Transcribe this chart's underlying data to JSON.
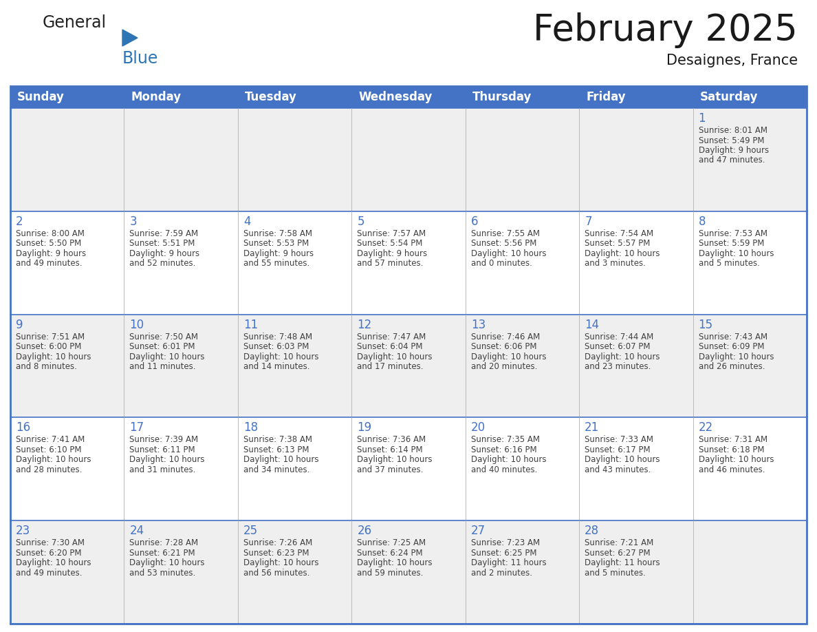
{
  "title": "February 2025",
  "subtitle": "Desaignes, France",
  "header_bg": "#4472C4",
  "header_text_color": "#FFFFFF",
  "cell_bg_odd": "#EFEFEF",
  "cell_bg_even": "#FFFFFF",
  "cell_border_color": "#4472C4",
  "day_number_color": "#4472C4",
  "cell_text_color": "#404040",
  "days_of_week": [
    "Sunday",
    "Monday",
    "Tuesday",
    "Wednesday",
    "Thursday",
    "Friday",
    "Saturday"
  ],
  "calendar": [
    [
      null,
      null,
      null,
      null,
      null,
      null,
      {
        "day": 1,
        "sunrise": "8:01 AM",
        "sunset": "5:49 PM",
        "daylight_line1": "Daylight: 9 hours",
        "daylight_line2": "and 47 minutes."
      }
    ],
    [
      {
        "day": 2,
        "sunrise": "8:00 AM",
        "sunset": "5:50 PM",
        "daylight_line1": "Daylight: 9 hours",
        "daylight_line2": "and 49 minutes."
      },
      {
        "day": 3,
        "sunrise": "7:59 AM",
        "sunset": "5:51 PM",
        "daylight_line1": "Daylight: 9 hours",
        "daylight_line2": "and 52 minutes."
      },
      {
        "day": 4,
        "sunrise": "7:58 AM",
        "sunset": "5:53 PM",
        "daylight_line1": "Daylight: 9 hours",
        "daylight_line2": "and 55 minutes."
      },
      {
        "day": 5,
        "sunrise": "7:57 AM",
        "sunset": "5:54 PM",
        "daylight_line1": "Daylight: 9 hours",
        "daylight_line2": "and 57 minutes."
      },
      {
        "day": 6,
        "sunrise": "7:55 AM",
        "sunset": "5:56 PM",
        "daylight_line1": "Daylight: 10 hours",
        "daylight_line2": "and 0 minutes."
      },
      {
        "day": 7,
        "sunrise": "7:54 AM",
        "sunset": "5:57 PM",
        "daylight_line1": "Daylight: 10 hours",
        "daylight_line2": "and 3 minutes."
      },
      {
        "day": 8,
        "sunrise": "7:53 AM",
        "sunset": "5:59 PM",
        "daylight_line1": "Daylight: 10 hours",
        "daylight_line2": "and 5 minutes."
      }
    ],
    [
      {
        "day": 9,
        "sunrise": "7:51 AM",
        "sunset": "6:00 PM",
        "daylight_line1": "Daylight: 10 hours",
        "daylight_line2": "and 8 minutes."
      },
      {
        "day": 10,
        "sunrise": "7:50 AM",
        "sunset": "6:01 PM",
        "daylight_line1": "Daylight: 10 hours",
        "daylight_line2": "and 11 minutes."
      },
      {
        "day": 11,
        "sunrise": "7:48 AM",
        "sunset": "6:03 PM",
        "daylight_line1": "Daylight: 10 hours",
        "daylight_line2": "and 14 minutes."
      },
      {
        "day": 12,
        "sunrise": "7:47 AM",
        "sunset": "6:04 PM",
        "daylight_line1": "Daylight: 10 hours",
        "daylight_line2": "and 17 minutes."
      },
      {
        "day": 13,
        "sunrise": "7:46 AM",
        "sunset": "6:06 PM",
        "daylight_line1": "Daylight: 10 hours",
        "daylight_line2": "and 20 minutes."
      },
      {
        "day": 14,
        "sunrise": "7:44 AM",
        "sunset": "6:07 PM",
        "daylight_line1": "Daylight: 10 hours",
        "daylight_line2": "and 23 minutes."
      },
      {
        "day": 15,
        "sunrise": "7:43 AM",
        "sunset": "6:09 PM",
        "daylight_line1": "Daylight: 10 hours",
        "daylight_line2": "and 26 minutes."
      }
    ],
    [
      {
        "day": 16,
        "sunrise": "7:41 AM",
        "sunset": "6:10 PM",
        "daylight_line1": "Daylight: 10 hours",
        "daylight_line2": "and 28 minutes."
      },
      {
        "day": 17,
        "sunrise": "7:39 AM",
        "sunset": "6:11 PM",
        "daylight_line1": "Daylight: 10 hours",
        "daylight_line2": "and 31 minutes."
      },
      {
        "day": 18,
        "sunrise": "7:38 AM",
        "sunset": "6:13 PM",
        "daylight_line1": "Daylight: 10 hours",
        "daylight_line2": "and 34 minutes."
      },
      {
        "day": 19,
        "sunrise": "7:36 AM",
        "sunset": "6:14 PM",
        "daylight_line1": "Daylight: 10 hours",
        "daylight_line2": "and 37 minutes."
      },
      {
        "day": 20,
        "sunrise": "7:35 AM",
        "sunset": "6:16 PM",
        "daylight_line1": "Daylight: 10 hours",
        "daylight_line2": "and 40 minutes."
      },
      {
        "day": 21,
        "sunrise": "7:33 AM",
        "sunset": "6:17 PM",
        "daylight_line1": "Daylight: 10 hours",
        "daylight_line2": "and 43 minutes."
      },
      {
        "day": 22,
        "sunrise": "7:31 AM",
        "sunset": "6:18 PM",
        "daylight_line1": "Daylight: 10 hours",
        "daylight_line2": "and 46 minutes."
      }
    ],
    [
      {
        "day": 23,
        "sunrise": "7:30 AM",
        "sunset": "6:20 PM",
        "daylight_line1": "Daylight: 10 hours",
        "daylight_line2": "and 49 minutes."
      },
      {
        "day": 24,
        "sunrise": "7:28 AM",
        "sunset": "6:21 PM",
        "daylight_line1": "Daylight: 10 hours",
        "daylight_line2": "and 53 minutes."
      },
      {
        "day": 25,
        "sunrise": "7:26 AM",
        "sunset": "6:23 PM",
        "daylight_line1": "Daylight: 10 hours",
        "daylight_line2": "and 56 minutes."
      },
      {
        "day": 26,
        "sunrise": "7:25 AM",
        "sunset": "6:24 PM",
        "daylight_line1": "Daylight: 10 hours",
        "daylight_line2": "and 59 minutes."
      },
      {
        "day": 27,
        "sunrise": "7:23 AM",
        "sunset": "6:25 PM",
        "daylight_line1": "Daylight: 11 hours",
        "daylight_line2": "and 2 minutes."
      },
      {
        "day": 28,
        "sunrise": "7:21 AM",
        "sunset": "6:27 PM",
        "daylight_line1": "Daylight: 11 hours",
        "daylight_line2": "and 5 minutes."
      },
      null
    ]
  ],
  "logo_general_color": "#222222",
  "logo_blue_color": "#2E75B6",
  "title_fontsize": 38,
  "subtitle_fontsize": 15,
  "header_fontsize": 12,
  "day_num_fontsize": 12,
  "cell_text_fontsize": 8.5
}
